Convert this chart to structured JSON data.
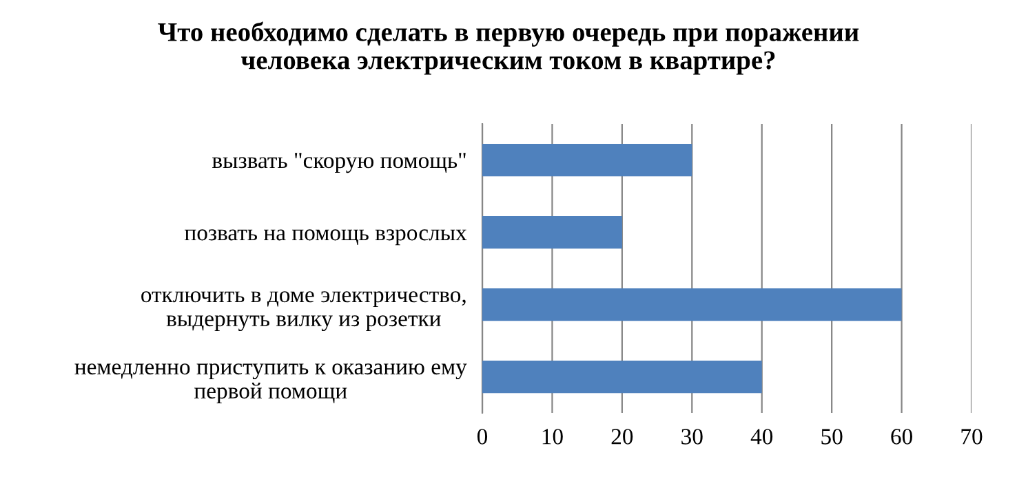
{
  "chart_data": {
    "type": "bar",
    "orientation": "horizontal",
    "title": "Что необходимо сделать в первую очередь при поражении\nчеловека электрическим током в квартире?",
    "categories": [
      "вызвать \"скорую помощь\"",
      "позвать на помощь взрослых",
      "отключить в доме электричество,\nвыдернуть вилку из розетки",
      "немедленно приступить к оказанию ему\nпервой помощи"
    ],
    "series": [
      {
        "color": "#4f81bd",
        "values": [
          30,
          20,
          60,
          40
        ]
      }
    ],
    "xlim": [
      0,
      70
    ],
    "xticks": [
      0,
      10,
      20,
      30,
      40,
      50,
      60,
      70
    ],
    "grid": "x",
    "legend": false
  }
}
